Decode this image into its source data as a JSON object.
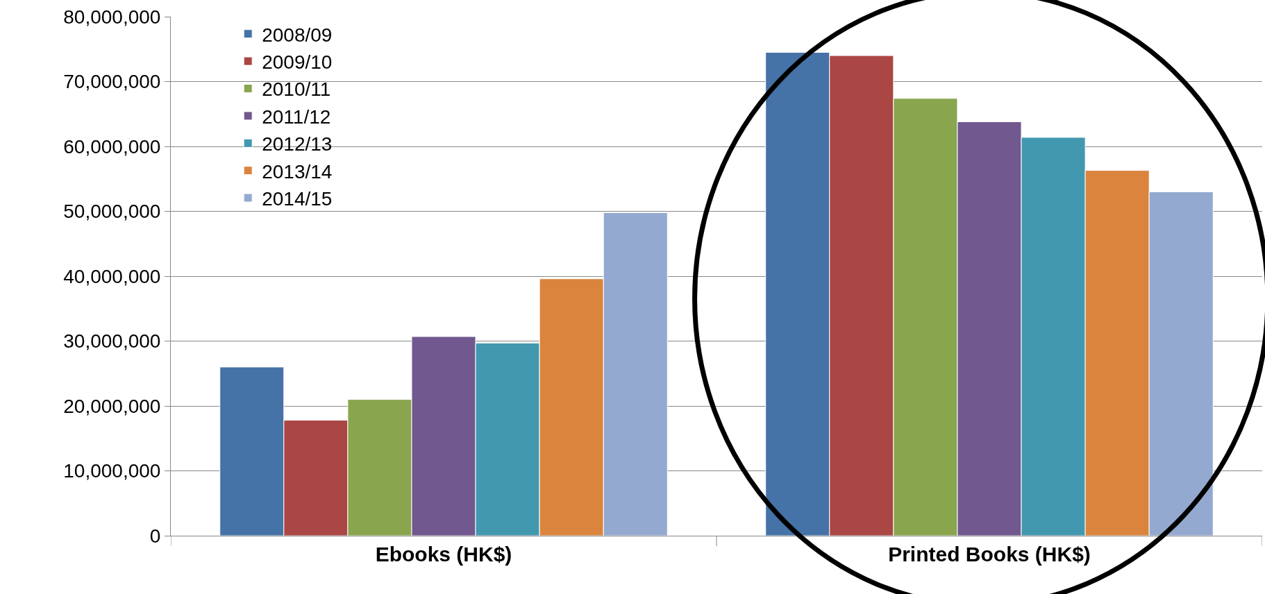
{
  "chart_data": {
    "type": "bar",
    "categories": [
      "Ebooks (HK$)",
      "Printed Books (HK$)"
    ],
    "series": [
      {
        "name": "2008/09",
        "color": "#4572a7",
        "values": [
          26000000,
          74500000
        ]
      },
      {
        "name": "2009/10",
        "color": "#aa4643",
        "values": [
          17800000,
          74000000
        ]
      },
      {
        "name": "2010/11",
        "color": "#89a54e",
        "values": [
          21000000,
          67400000
        ]
      },
      {
        "name": "2011/12",
        "color": "#71588f",
        "values": [
          30700000,
          63800000
        ]
      },
      {
        "name": "2012/13",
        "color": "#4198af",
        "values": [
          29700000,
          61400000
        ]
      },
      {
        "name": "2013/14",
        "color": "#db843d",
        "values": [
          39600000,
          56300000
        ]
      },
      {
        "name": "2014/15",
        "color": "#93a9cf",
        "values": [
          49800000,
          53000000
        ]
      }
    ],
    "ylim": [
      0,
      80000000
    ],
    "yticks": [
      {
        "value": 0,
        "label": "0"
      },
      {
        "value": 10000000,
        "label": "10,000,000"
      },
      {
        "value": 20000000,
        "label": "20,000,000"
      },
      {
        "value": 30000000,
        "label": "30,000,000"
      },
      {
        "value": 40000000,
        "label": "40,000,000"
      },
      {
        "value": 50000000,
        "label": "50,000,000"
      },
      {
        "value": 60000000,
        "label": "60,000,000"
      },
      {
        "value": 70000000,
        "label": "70,000,000"
      },
      {
        "value": 80000000,
        "label": "80,000,000"
      }
    ],
    "grid": "y",
    "legend": "top left"
  }
}
